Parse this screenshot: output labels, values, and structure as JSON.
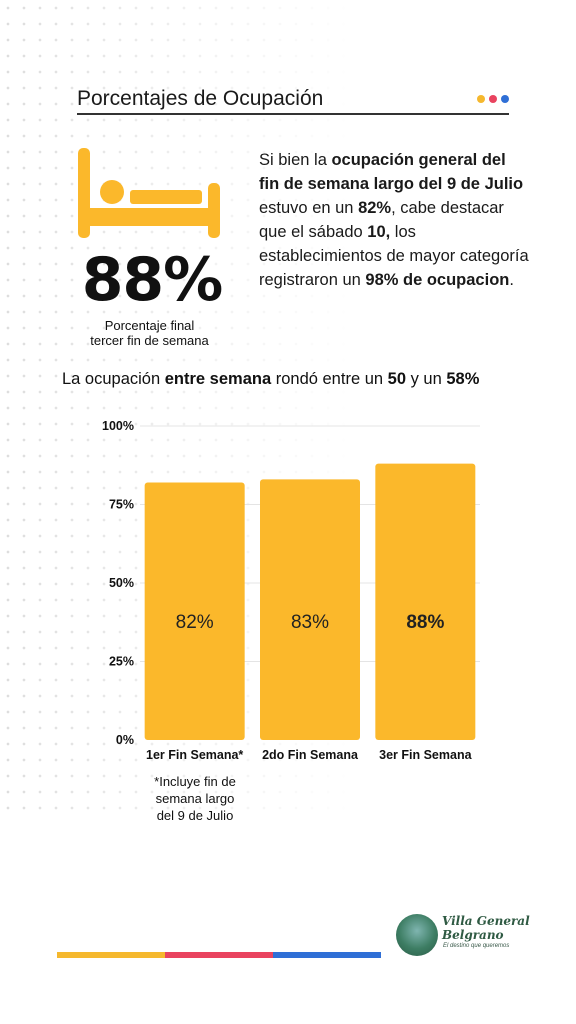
{
  "header": {
    "title": "Porcentajes de Ocupación",
    "dot_colors": [
      "#f5b82e",
      "#e9435f",
      "#2f6fd6"
    ]
  },
  "highlight": {
    "value": "88%",
    "caption_line1": "Porcentaje final",
    "caption_line2": "tercer fin de semana",
    "icon": "bed-icon"
  },
  "paragraph": {
    "p1": "Si bien la ",
    "b1": "ocupación general del fin de semana largo del 9 de Julio",
    "p2": " estuvo en un ",
    "b2": "82%",
    "p3": ", cabe destacar que el sábado ",
    "b3": "10,",
    "p4": " los establecimientos de mayor categoría registraron un ",
    "b4": "98% de ocupacion",
    "p5": "."
  },
  "subtitle": {
    "p1": "La ocupación ",
    "b1": "entre semana",
    "p2": " rondó entre un ",
    "b2": "50",
    "p3": " y un ",
    "b3": "58%"
  },
  "chart_data": {
    "type": "bar",
    "title": "",
    "xlabel": "",
    "ylabel": "",
    "categories": [
      "1er Fin Semana*",
      "2do Fin Semana",
      "3er Fin Semana"
    ],
    "values": [
      82,
      83,
      88
    ],
    "data_labels": [
      "82%",
      "83%",
      "88%"
    ],
    "data_label_bold": [
      false,
      false,
      true
    ],
    "ylim": [
      0,
      100
    ],
    "yticks": [
      0,
      25,
      50,
      75,
      100
    ],
    "ytick_labels": [
      "0%",
      "25%",
      "50%",
      "75%",
      "100%"
    ],
    "grid": true,
    "bar_color": "#fbb82b"
  },
  "footnote": {
    "line1": "*Incluye fin de",
    "line2": "semana largo",
    "line3": "del 9 de Julio"
  },
  "footer": {
    "bar_colors": [
      "#f5b82e",
      "#e9435f",
      "#2f6fd6"
    ],
    "logo_line1": "Villa General",
    "logo_line2": "Belgrano",
    "logo_tagline": "El destino que queremos",
    "logo_icon": "town-emblem-icon"
  }
}
